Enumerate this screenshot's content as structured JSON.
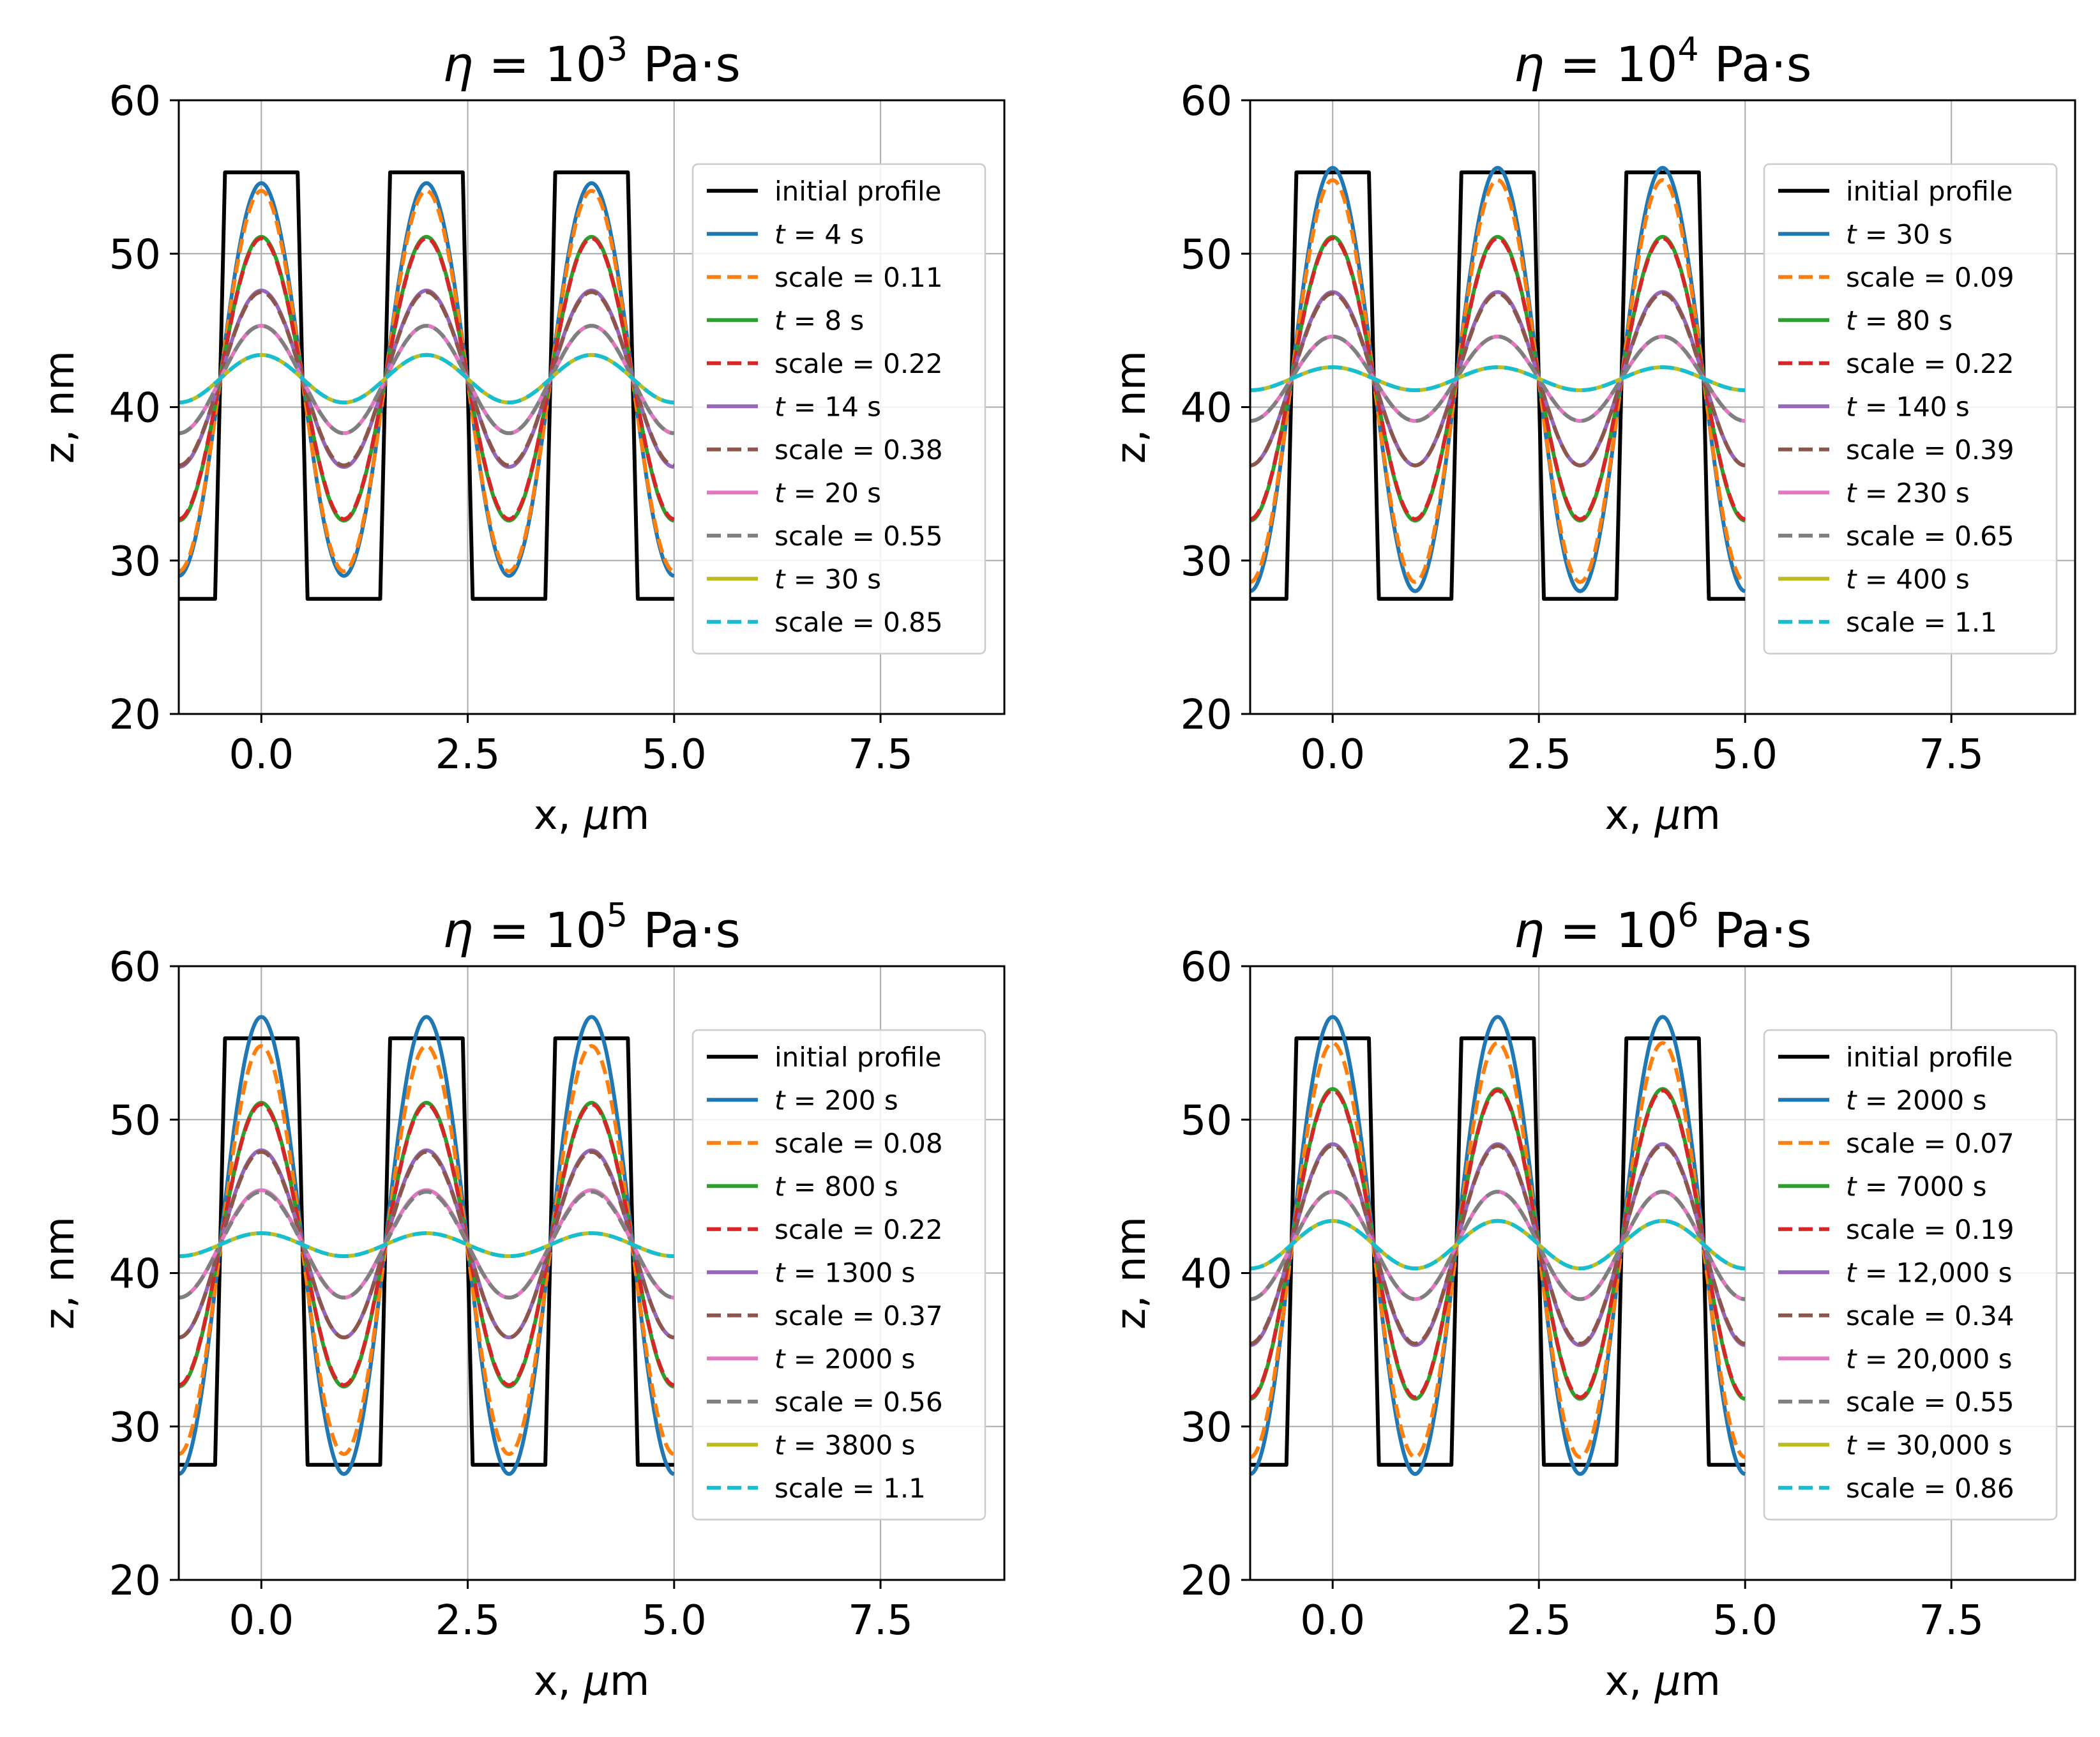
{
  "chart_data": [
    {
      "type": "line",
      "title_prefix": "η = 10",
      "title_exp": "3",
      "title_suffix": " Pa·s",
      "xlabel": "x, μm",
      "ylabel": "z, nm",
      "xlim": [
        -1,
        9
      ],
      "ylim": [
        20,
        60
      ],
      "xticks": [
        0.0,
        2.5,
        5.0,
        7.5
      ],
      "xtick_labels": [
        "0.0",
        "2.5",
        "5.0",
        "7.5"
      ],
      "yticks": [
        20,
        30,
        40,
        50,
        60
      ],
      "ytick_labels": [
        "20",
        "30",
        "40",
        "50",
        "60"
      ],
      "grid": true,
      "legend_position": "right",
      "initial_profile": {
        "name": "initial profile",
        "color": "#000000",
        "high": 55.3,
        "low": 27.5,
        "x_range": [
          -1,
          5
        ]
      },
      "series": [
        {
          "name": "t = 4 s",
          "time": "4 s",
          "style": "solid",
          "color": "#1f77b4",
          "max": 54.6,
          "min": 29.0
        },
        {
          "name": "scale = 0.11",
          "style": "dashed",
          "color": "#ff7f0e",
          "max": 54.1,
          "min": 29.3
        },
        {
          "name": "t = 8 s",
          "time": "8 s",
          "style": "solid",
          "color": "#2ca02c",
          "max": 51.1,
          "min": 32.6
        },
        {
          "name": "scale = 0.22",
          "style": "dashed",
          "color": "#d62728",
          "max": 51.0,
          "min": 32.7
        },
        {
          "name": "t = 14 s",
          "time": "14 s",
          "style": "solid",
          "color": "#9467bd",
          "max": 47.6,
          "min": 36.1
        },
        {
          "name": "scale = 0.38",
          "style": "dashed",
          "color": "#8c564b",
          "max": 47.5,
          "min": 36.2
        },
        {
          "name": "t = 20 s",
          "time": "20 s",
          "style": "solid",
          "color": "#e377c2",
          "max": 45.3,
          "min": 38.3
        },
        {
          "name": "scale = 0.55",
          "style": "dashed",
          "color": "#7f7f7f",
          "max": 45.3,
          "min": 38.3
        },
        {
          "name": "t = 30 s",
          "time": "30 s",
          "style": "solid",
          "color": "#bcbd22",
          "max": 43.4,
          "min": 40.3
        },
        {
          "name": "scale = 0.85",
          "style": "dashed",
          "color": "#17becf",
          "max": 43.4,
          "min": 40.3
        }
      ]
    },
    {
      "type": "line",
      "title_prefix": "η = 10",
      "title_exp": "4",
      "title_suffix": " Pa·s",
      "xlabel": "x, μm",
      "ylabel": "z, nm",
      "xlim": [
        -1,
        9
      ],
      "ylim": [
        20,
        60
      ],
      "xticks": [
        0.0,
        2.5,
        5.0,
        7.5
      ],
      "xtick_labels": [
        "0.0",
        "2.5",
        "5.0",
        "7.5"
      ],
      "yticks": [
        20,
        30,
        40,
        50,
        60
      ],
      "ytick_labels": [
        "20",
        "30",
        "40",
        "50",
        "60"
      ],
      "grid": true,
      "legend_position": "right",
      "initial_profile": {
        "name": "initial profile",
        "color": "#000000",
        "high": 55.3,
        "low": 27.5,
        "x_range": [
          -1,
          5
        ]
      },
      "series": [
        {
          "name": "t = 30 s",
          "time": "30 s",
          "style": "solid",
          "color": "#1f77b4",
          "max": 55.6,
          "min": 28.0
        },
        {
          "name": "scale = 0.09",
          "style": "dashed",
          "color": "#ff7f0e",
          "max": 54.8,
          "min": 28.6
        },
        {
          "name": "t = 80 s",
          "time": "80 s",
          "style": "solid",
          "color": "#2ca02c",
          "max": 51.1,
          "min": 32.6
        },
        {
          "name": "scale = 0.22",
          "style": "dashed",
          "color": "#d62728",
          "max": 51.0,
          "min": 32.7
        },
        {
          "name": "t = 140 s",
          "time": "140 s",
          "style": "solid",
          "color": "#9467bd",
          "max": 47.5,
          "min": 36.2
        },
        {
          "name": "scale = 0.39",
          "style": "dashed",
          "color": "#8c564b",
          "max": 47.4,
          "min": 36.2
        },
        {
          "name": "t = 230 s",
          "time": "230 s",
          "style": "solid",
          "color": "#e377c2",
          "max": 44.6,
          "min": 39.1
        },
        {
          "name": "scale = 0.65",
          "style": "dashed",
          "color": "#7f7f7f",
          "max": 44.6,
          "min": 39.1
        },
        {
          "name": "t = 400 s",
          "time": "400 s",
          "style": "solid",
          "color": "#bcbd22",
          "max": 42.6,
          "min": 41.1
        },
        {
          "name": "scale = 1.1",
          "style": "dashed",
          "color": "#17becf",
          "max": 42.6,
          "min": 41.1
        }
      ]
    },
    {
      "type": "line",
      "title_prefix": "η = 10",
      "title_exp": "5",
      "title_suffix": " Pa·s",
      "xlabel": "x, μm",
      "ylabel": "z, nm",
      "xlim": [
        -1,
        9
      ],
      "ylim": [
        20,
        60
      ],
      "xticks": [
        0.0,
        2.5,
        5.0,
        7.5
      ],
      "xtick_labels": [
        "0.0",
        "2.5",
        "5.0",
        "7.5"
      ],
      "yticks": [
        20,
        30,
        40,
        50,
        60
      ],
      "ytick_labels": [
        "20",
        "30",
        "40",
        "50",
        "60"
      ],
      "grid": true,
      "legend_position": "right",
      "initial_profile": {
        "name": "initial profile",
        "color": "#000000",
        "high": 55.3,
        "low": 27.5,
        "x_range": [
          -1,
          5
        ]
      },
      "series": [
        {
          "name": "t = 200 s",
          "time": "200 s",
          "style": "solid",
          "color": "#1f77b4",
          "max": 56.7,
          "min": 26.9
        },
        {
          "name": "scale = 0.08",
          "style": "dashed",
          "color": "#ff7f0e",
          "max": 54.8,
          "min": 28.2
        },
        {
          "name": "t = 800 s",
          "time": "800 s",
          "style": "solid",
          "color": "#2ca02c",
          "max": 51.1,
          "min": 32.6
        },
        {
          "name": "scale = 0.22",
          "style": "dashed",
          "color": "#d62728",
          "max": 51.0,
          "min": 32.7
        },
        {
          "name": "t = 1300 s",
          "time": "1300 s",
          "style": "solid",
          "color": "#9467bd",
          "max": 48.0,
          "min": 35.8
        },
        {
          "name": "scale = 0.37",
          "style": "dashed",
          "color": "#8c564b",
          "max": 47.9,
          "min": 35.8
        },
        {
          "name": "t = 2000 s",
          "time": "2000 s",
          "style": "solid",
          "color": "#e377c2",
          "max": 45.4,
          "min": 38.4
        },
        {
          "name": "scale = 0.56",
          "style": "dashed",
          "color": "#7f7f7f",
          "max": 45.3,
          "min": 38.4
        },
        {
          "name": "t = 3800 s",
          "time": "3800 s",
          "style": "solid",
          "color": "#bcbd22",
          "max": 42.6,
          "min": 41.1
        },
        {
          "name": "scale = 1.1",
          "style": "dashed",
          "color": "#17becf",
          "max": 42.6,
          "min": 41.1
        }
      ]
    },
    {
      "type": "line",
      "title_prefix": "η = 10",
      "title_exp": "6",
      "title_suffix": " Pa·s",
      "xlabel": "x, μm",
      "ylabel": "z, nm",
      "xlim": [
        -1,
        9
      ],
      "ylim": [
        20,
        60
      ],
      "xticks": [
        0.0,
        2.5,
        5.0,
        7.5
      ],
      "xtick_labels": [
        "0.0",
        "2.5",
        "5.0",
        "7.5"
      ],
      "yticks": [
        20,
        30,
        40,
        50,
        60
      ],
      "ytick_labels": [
        "20",
        "30",
        "40",
        "50",
        "60"
      ],
      "grid": true,
      "legend_position": "right",
      "initial_profile": {
        "name": "initial profile",
        "color": "#000000",
        "high": 55.3,
        "low": 27.5,
        "x_range": [
          -1,
          5
        ]
      },
      "series": [
        {
          "name": "t = 2000 s",
          "time": "2000 s",
          "style": "solid",
          "color": "#1f77b4",
          "max": 56.7,
          "min": 26.9
        },
        {
          "name": "scale = 0.07",
          "style": "dashed",
          "color": "#ff7f0e",
          "max": 55.0,
          "min": 28.0
        },
        {
          "name": "t = 7000 s",
          "time": "7000 s",
          "style": "solid",
          "color": "#2ca02c",
          "max": 52.0,
          "min": 31.8
        },
        {
          "name": "scale = 0.19",
          "style": "dashed",
          "color": "#d62728",
          "max": 51.9,
          "min": 31.9
        },
        {
          "name": "t = 12,000 s",
          "time": "12,000 s",
          "style": "solid",
          "color": "#9467bd",
          "max": 48.4,
          "min": 35.3
        },
        {
          "name": "scale = 0.34",
          "style": "dashed",
          "color": "#8c564b",
          "max": 48.3,
          "min": 35.4
        },
        {
          "name": "t = 20,000 s",
          "time": "20,000 s",
          "style": "solid",
          "color": "#e377c2",
          "max": 45.3,
          "min": 38.3
        },
        {
          "name": "scale = 0.55",
          "style": "dashed",
          "color": "#7f7f7f",
          "max": 45.3,
          "min": 38.3
        },
        {
          "name": "t = 30,000 s",
          "time": "30,000 s",
          "style": "solid",
          "color": "#bcbd22",
          "max": 43.4,
          "min": 40.3
        },
        {
          "name": "scale = 0.86",
          "style": "dashed",
          "color": "#17becf",
          "max": 43.4,
          "min": 40.3
        }
      ]
    }
  ]
}
